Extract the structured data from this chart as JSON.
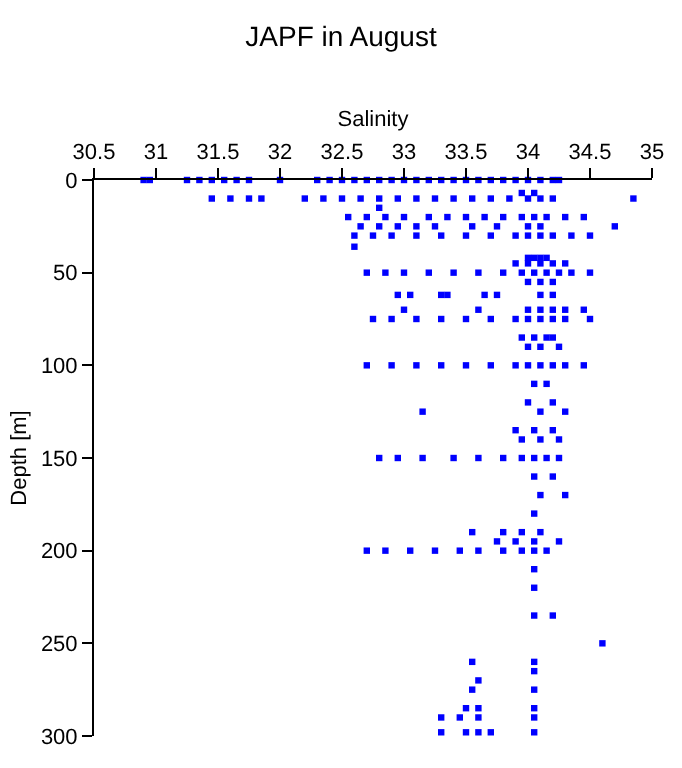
{
  "chart_data": {
    "type": "scatter",
    "title": "JAPF in August",
    "xlabel": "Salinity",
    "ylabel": "Depth [m]",
    "xlim": [
      30.5,
      35
    ],
    "xticks": [
      30.5,
      31,
      31.5,
      32,
      32.5,
      33,
      33.5,
      34,
      34.5,
      35
    ],
    "ylim": [
      300,
      0
    ],
    "yticks": [
      0,
      50,
      100,
      150,
      200,
      250,
      300
    ],
    "grid": false,
    "marker": "square",
    "series": [
      {
        "color": "#0000ff",
        "x": [
          30.9,
          30.95,
          31.25,
          31.35,
          31.45,
          31.55,
          31.65,
          31.75,
          32.0,
          32.3,
          32.4,
          32.5,
          32.6,
          32.7,
          32.8,
          32.9,
          33.0,
          33.1,
          33.2,
          33.3,
          33.4,
          33.5,
          33.6,
          33.7,
          33.8,
          33.9,
          34.0,
          34.1,
          34.2,
          34.25,
          31.45,
          31.6,
          31.75,
          31.85,
          32.2,
          32.35,
          32.5,
          32.65,
          32.8,
          32.95,
          33.1,
          33.25,
          33.4,
          33.55,
          33.7,
          33.85,
          34.0,
          34.1,
          34.2,
          34.85,
          33.95,
          34.05,
          32.55,
          32.7,
          32.85,
          33.0,
          33.2,
          33.35,
          33.5,
          33.65,
          33.8,
          33.95,
          34.05,
          34.15,
          34.3,
          34.45,
          32.65,
          32.8,
          32.95,
          33.1,
          33.25,
          33.55,
          33.75,
          34.0,
          34.1,
          34.7,
          32.6,
          32.75,
          32.9,
          33.1,
          33.3,
          33.5,
          33.7,
          33.9,
          34.0,
          34.1,
          34.2,
          34.35,
          34.5,
          32.6,
          32.8,
          34.0,
          34.05,
          34.1,
          34.15,
          33.9,
          34.0,
          34.1,
          34.2,
          34.3,
          32.7,
          32.85,
          33.0,
          33.2,
          33.4,
          33.6,
          33.8,
          33.95,
          34.05,
          34.15,
          34.25,
          34.35,
          34.5,
          34.0,
          34.1,
          34.2,
          32.95,
          33.05,
          33.3,
          33.35,
          33.65,
          33.75,
          34.1,
          34.2,
          33.0,
          33.6,
          34.0,
          34.1,
          34.2,
          34.3,
          34.45,
          32.75,
          32.9,
          33.1,
          33.3,
          33.5,
          33.7,
          33.9,
          34.0,
          34.1,
          34.2,
          34.3,
          34.5,
          33.95,
          34.05,
          34.15,
          34.2,
          34.0,
          34.1,
          34.25,
          32.7,
          32.9,
          33.1,
          33.3,
          33.5,
          33.7,
          33.9,
          34.0,
          34.1,
          34.2,
          34.3,
          34.45,
          34.05,
          34.15,
          34.0,
          34.2,
          33.15,
          34.1,
          34.3,
          33.9,
          34.05,
          34.2,
          33.95,
          34.1,
          34.25,
          32.8,
          32.95,
          33.15,
          33.4,
          33.6,
          33.8,
          33.95,
          34.05,
          34.15,
          34.25,
          34.05,
          34.2,
          34.1,
          34.3,
          34.05,
          33.55,
          33.8,
          33.95,
          34.1,
          33.75,
          33.9,
          34.05,
          34.25,
          32.7,
          32.85,
          33.05,
          33.25,
          33.45,
          33.6,
          33.8,
          33.95,
          34.05,
          34.15,
          34.05,
          34.05,
          34.05,
          34.2,
          34.6,
          33.55,
          34.05,
          34.05,
          33.6,
          33.55,
          34.05,
          33.5,
          33.6,
          34.05,
          33.3,
          33.45,
          33.6,
          34.05,
          33.3,
          33.5,
          33.6,
          33.7,
          34.05
        ],
        "values": [
          0,
          0,
          0,
          0,
          0,
          0,
          0,
          0,
          0,
          0,
          0,
          0,
          0,
          0,
          0,
          0,
          0,
          0,
          0,
          0,
          0,
          0,
          0,
          0,
          0,
          0,
          0,
          0,
          0,
          0,
          10,
          10,
          10,
          10,
          10,
          10,
          10,
          10,
          10,
          10,
          10,
          10,
          10,
          10,
          10,
          10,
          10,
          10,
          10,
          10,
          7,
          7,
          20,
          20,
          20,
          20,
          20,
          20,
          20,
          20,
          20,
          20,
          20,
          20,
          20,
          20,
          25,
          25,
          25,
          25,
          25,
          25,
          25,
          25,
          25,
          25,
          30,
          30,
          30,
          30,
          30,
          30,
          30,
          30,
          30,
          30,
          30,
          30,
          30,
          36,
          15,
          42,
          42,
          42,
          42,
          45,
          45,
          45,
          45,
          45,
          50,
          50,
          50,
          50,
          50,
          50,
          50,
          50,
          50,
          50,
          50,
          50,
          50,
          55,
          55,
          55,
          62,
          62,
          62,
          62,
          62,
          62,
          62,
          62,
          70,
          70,
          70,
          70,
          70,
          70,
          70,
          75,
          75,
          75,
          75,
          75,
          75,
          75,
          75,
          75,
          75,
          75,
          75,
          85,
          85,
          85,
          85,
          90,
          90,
          90,
          100,
          100,
          100,
          100,
          100,
          100,
          100,
          100,
          100,
          100,
          100,
          100,
          110,
          110,
          120,
          120,
          125,
          125,
          125,
          135,
          135,
          135,
          140,
          140,
          140,
          150,
          150,
          150,
          150,
          150,
          150,
          150,
          150,
          150,
          150,
          160,
          160,
          170,
          170,
          180,
          190,
          190,
          190,
          190,
          195,
          195,
          195,
          195,
          200,
          200,
          200,
          200,
          200,
          200,
          200,
          200,
          200,
          200,
          210,
          220,
          235,
          235,
          250,
          260,
          260,
          265,
          270,
          275,
          275,
          285,
          285,
          285,
          290,
          290,
          290,
          290,
          298,
          298,
          298,
          298,
          298
        ]
      }
    ]
  }
}
